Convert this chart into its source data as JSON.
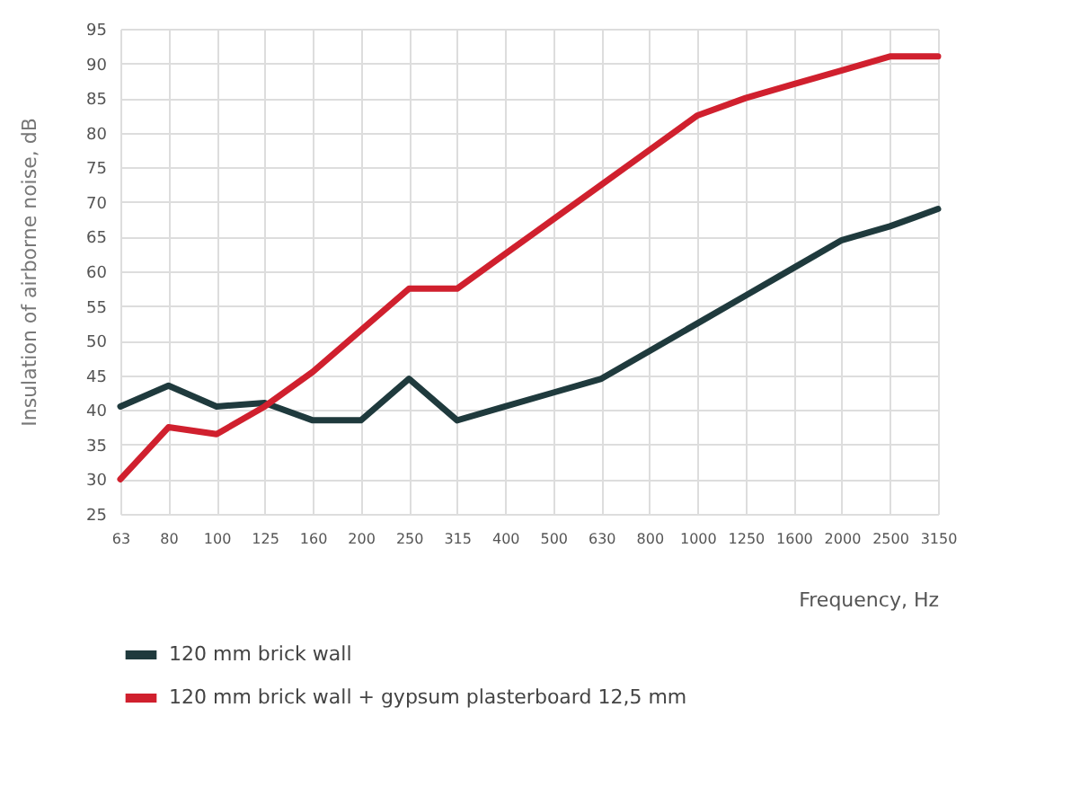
{
  "chart_data": {
    "type": "line",
    "xlabel": "Frequency, Hz",
    "ylabel": "Insulation of airborne noise, dB",
    "categories": [
      "63",
      "80",
      "100",
      "125",
      "160",
      "200",
      "250",
      "315",
      "400",
      "500",
      "630",
      "800",
      "1000",
      "1250",
      "1600",
      "2000",
      "2500",
      "3150"
    ],
    "series": [
      {
        "name": "120 mm brick wall",
        "color": "#1f3a3d",
        "values": [
          40.5,
          43.5,
          40.5,
          41,
          38.5,
          38.5,
          44.5,
          38.5,
          40.5,
          42.5,
          44.5,
          48.5,
          52.5,
          56.5,
          60.5,
          64.5,
          66.5,
          69
        ]
      },
      {
        "name": "120 mm brick wall + gypsum plasterboard 12,5 mm",
        "color": "#d0202e",
        "values": [
          30,
          37.5,
          36.5,
          40.5,
          45.5,
          51.5,
          57.5,
          57.5,
          62.5,
          67.5,
          72.5,
          77.5,
          82.5,
          85,
          87,
          89,
          91,
          91
        ]
      }
    ],
    "ylim": [
      25,
      95
    ],
    "yticks": [
      25,
      30,
      35,
      40,
      45,
      50,
      55,
      60,
      65,
      70,
      75,
      80,
      85,
      90,
      95
    ],
    "grid": true,
    "legend": "bottom left",
    "marker": "none",
    "line_style": "solid"
  }
}
